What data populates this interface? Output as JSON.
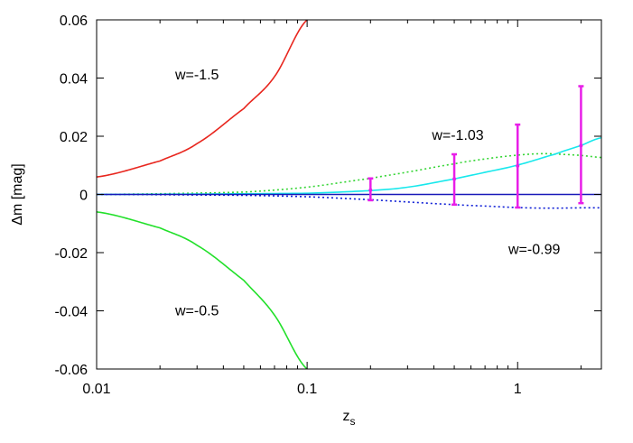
{
  "chart_data": {
    "type": "line",
    "xlabel": "z",
    "xlabel_sub": "s",
    "ylabel": "Δm [mag]",
    "xscale": "log",
    "xlim": [
      0.01,
      2.5
    ],
    "ylim": [
      -0.06,
      0.06
    ],
    "xticks": [
      {
        "value": 0.01,
        "label": "0.01"
      },
      {
        "value": 0.1,
        "label": "0.1"
      },
      {
        "value": 1,
        "label": "1"
      }
    ],
    "yticks": [
      {
        "value": 0.06,
        "label": "0.06"
      },
      {
        "value": 0.04,
        "label": "0.04"
      },
      {
        "value": 0.02,
        "label": "0.02"
      },
      {
        "value": 0,
        "label": "0"
      },
      {
        "value": -0.02,
        "label": "-0.02"
      },
      {
        "value": -0.04,
        "label": "-0.04"
      },
      {
        "value": -0.06,
        "label": "-0.06"
      }
    ],
    "grid": false,
    "series": [
      {
        "key": "w-1.5",
        "color": "#e8261e",
        "dash": "solid",
        "x": [
          0.01,
          0.02,
          0.03,
          0.05,
          0.07,
          0.1
        ],
        "y": [
          0.006,
          0.0115,
          0.0175,
          0.0295,
          0.0405,
          0.06
        ]
      },
      {
        "key": "w-0.5",
        "color": "#22e02a",
        "dash": "solid",
        "x": [
          0.01,
          0.02,
          0.03,
          0.05,
          0.07,
          0.1
        ],
        "y": [
          -0.006,
          -0.0115,
          -0.0175,
          -0.0295,
          -0.0415,
          -0.06
        ]
      },
      {
        "key": "w-1.03",
        "color": "#35d535",
        "dash": "dotted",
        "x": [
          0.01,
          0.05,
          0.1,
          0.2,
          0.3,
          0.5,
          0.7,
          1.0,
          1.3,
          1.6,
          2.0,
          2.5
        ],
        "y": [
          0.0,
          0.0008,
          0.0025,
          0.0055,
          0.0077,
          0.0105,
          0.0122,
          0.0135,
          0.014,
          0.0138,
          0.0134,
          0.0127
        ]
      },
      {
        "key": "w-0.99",
        "color": "#0f1fd6",
        "dash": "dotted",
        "x": [
          0.01,
          0.05,
          0.1,
          0.2,
          0.3,
          0.5,
          0.7,
          1.0,
          1.3,
          1.6,
          2.0,
          2.5
        ],
        "y": [
          0.0,
          -0.0003,
          -0.0008,
          -0.0018,
          -0.0026,
          -0.0035,
          -0.004,
          -0.0045,
          -0.0047,
          -0.0047,
          -0.0046,
          -0.0046
        ]
      },
      {
        "key": "cyan",
        "color": "#18e8ec",
        "dash": "solid",
        "x": [
          0.01,
          0.1,
          0.2,
          0.3,
          0.5,
          0.7,
          1.0,
          1.5,
          2.0,
          2.5
        ],
        "y": [
          0.0,
          0.0004,
          0.0013,
          0.0025,
          0.0053,
          0.0076,
          0.0101,
          0.0138,
          0.0168,
          0.0195
        ]
      },
      {
        "key": "baseline",
        "color": "#1818b8",
        "dash": "solid",
        "x": [
          0.01,
          2.5
        ],
        "y": [
          0.0,
          0.0
        ]
      }
    ],
    "error_bars": {
      "color": "#e81ee8",
      "points": [
        {
          "x": 0.2,
          "y": 0.0015,
          "low": -0.002,
          "high": 0.0055
        },
        {
          "x": 0.5,
          "y": 0.0053,
          "low": -0.0035,
          "high": 0.0138
        },
        {
          "x": 1.0,
          "y": 0.0098,
          "low": -0.0045,
          "high": 0.024
        },
        {
          "x": 2.0,
          "y": 0.0168,
          "low": -0.003,
          "high": 0.0372
        }
      ]
    },
    "annotations": [
      {
        "text": "w=-1.5",
        "x": 0.03,
        "y": 0.0395
      },
      {
        "text": "w=-1.03",
        "x": 0.52,
        "y": 0.0188
      },
      {
        "text": "w=-0.99",
        "x": 1.2,
        "y": -0.0205
      },
      {
        "text": "w=-0.5",
        "x": 0.03,
        "y": -0.0415
      }
    ]
  }
}
